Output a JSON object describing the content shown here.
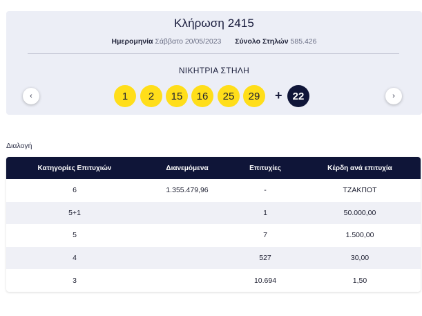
{
  "draw": {
    "title": "Κλήρωση 2415",
    "date_label": "Ημερομηνία",
    "date_value": "Σάββατο 20/05/2023",
    "columns_label": "Σύνολο Στηλών",
    "columns_value": "585.426",
    "winning_label": "ΝΙΚΗΤΡΙΑ ΣΤΗΛΗ",
    "numbers": [
      "1",
      "2",
      "15",
      "16",
      "25",
      "29"
    ],
    "plus": "+",
    "bonus": "22",
    "prev_glyph": "‹",
    "next_glyph": "›",
    "colors": {
      "main_ball": "#ffde1a",
      "bonus_ball": "#0f1538"
    }
  },
  "section_label": "Διαλογή",
  "table": {
    "headers": [
      "Κατηγορίες Επιτυχιών",
      "Διανεμόμενα",
      "Επιτυχίες",
      "Κέρδη ανά επιτυχία"
    ],
    "rows": [
      [
        "6",
        "1.355.479,96",
        "-",
        "ΤΖΑΚΠΟΤ"
      ],
      [
        "5+1",
        "",
        "1",
        "50.000,00"
      ],
      [
        "5",
        "",
        "7",
        "1.500,00"
      ],
      [
        "4",
        "",
        "527",
        "30,00"
      ],
      [
        "3",
        "",
        "10.694",
        "1,50"
      ]
    ]
  }
}
